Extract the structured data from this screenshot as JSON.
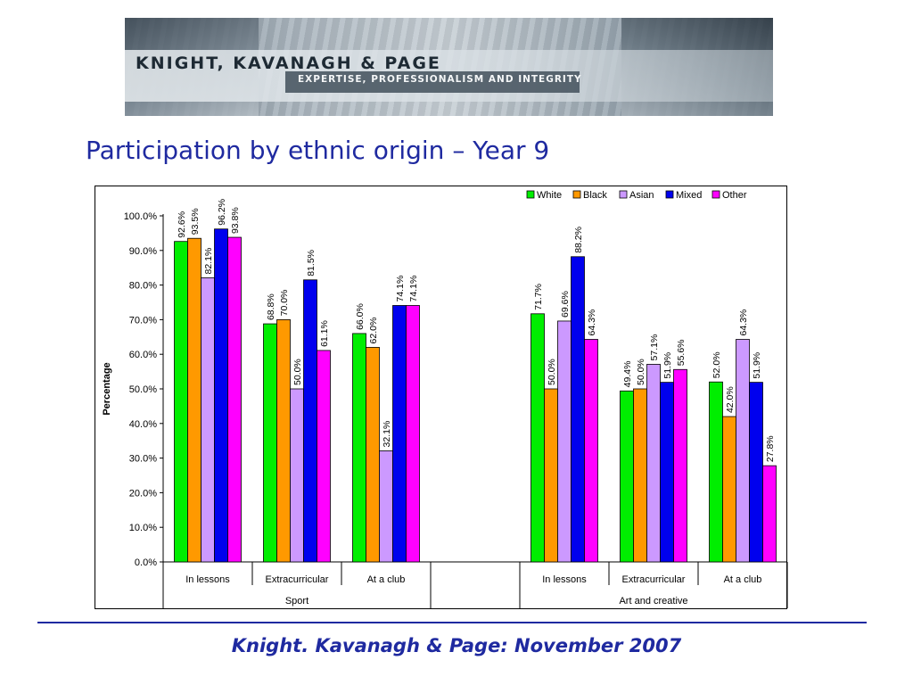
{
  "banner": {
    "firm_name": "KNIGHT, KAVANAGH & PAGE",
    "tagline": "EXPERTISE, PROFESSIONALISM AND INTEGRITY"
  },
  "slide_title": "Participation by ethnic origin – Year 9",
  "footer": "Knight. Kavanagh & Page: November 2007",
  "chart_data": {
    "type": "bar",
    "title": "",
    "xlabel": "",
    "ylabel": "Percentage",
    "ylim": [
      0,
      100
    ],
    "yticks": [
      "0.0%",
      "10.0%",
      "20.0%",
      "30.0%",
      "40.0%",
      "50.0%",
      "60.0%",
      "70.0%",
      "80.0%",
      "90.0%",
      "100.0%"
    ],
    "legend_position": "top-right",
    "groups": [
      {
        "name": "Sport",
        "categories": [
          "In lessons",
          "Extracurricular",
          "At a club"
        ]
      },
      {
        "name": "",
        "categories": [
          ""
        ]
      },
      {
        "name": "Art and creative",
        "categories": [
          "In lessons",
          "Extracurricular",
          "At a club"
        ]
      }
    ],
    "categories": [
      "In lessons",
      "Extracurricular",
      "At a club",
      "",
      "In lessons",
      "Extracurricular",
      "At a club"
    ],
    "series": [
      {
        "name": "White",
        "color": "#00ee00",
        "values": [
          92.6,
          68.8,
          66.0,
          null,
          71.7,
          49.4,
          52.0
        ],
        "labels": [
          "92.6%",
          "68.8%",
          "66.0%",
          "",
          "71.7%",
          "49.4%",
          "52.0%"
        ]
      },
      {
        "name": "Black",
        "color": "#ff9900",
        "values": [
          93.5,
          70.0,
          62.0,
          null,
          50.0,
          50.0,
          42.0
        ],
        "labels": [
          "93.5%",
          "70.0%",
          "62.0%",
          "",
          "50.0%",
          "50.0%",
          "42.0%"
        ]
      },
      {
        "name": "Asian",
        "color": "#cc99ff",
        "values": [
          82.1,
          50.0,
          32.1,
          null,
          69.6,
          57.1,
          64.3
        ],
        "labels": [
          "82.1%",
          "50.0%",
          "32.1%",
          "",
          "69.6%",
          "57.1%",
          "64.3%"
        ]
      },
      {
        "name": "Mixed",
        "color": "#0000ee",
        "values": [
          96.2,
          81.5,
          74.1,
          null,
          88.2,
          51.9,
          51.9
        ],
        "labels": [
          "96.2%",
          "81.5%",
          "74.1%",
          "",
          "88.2%",
          "51.9%",
          "51.9%"
        ]
      },
      {
        "name": "Other",
        "color": "#ff00ff",
        "values": [
          93.8,
          61.1,
          74.1,
          null,
          64.3,
          55.6,
          27.8
        ],
        "labels": [
          "93.8%",
          "61.1%",
          "74.1%",
          "",
          "64.3%",
          "55.6%",
          "27.8%"
        ]
      }
    ]
  }
}
